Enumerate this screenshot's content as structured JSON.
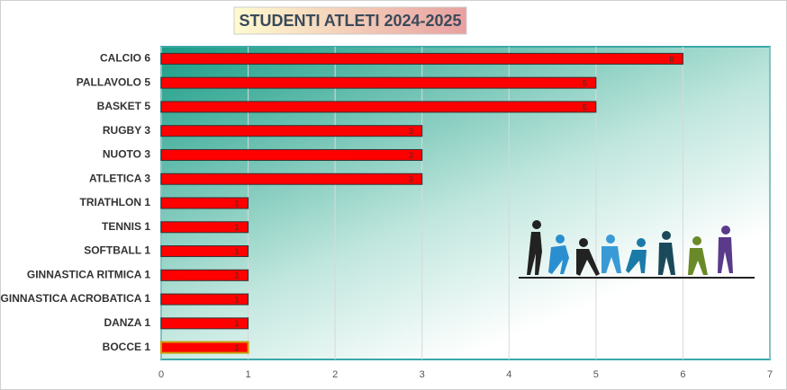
{
  "chart_data": {
    "type": "bar",
    "horizontal": true,
    "title": "STUDENTI ATLETI 2024-2025",
    "categories": [
      "CALCIO 6",
      "PALLAVOLO 5",
      "BASKET 5",
      "RUGBY 3",
      "NUOTO 3",
      "ATLETICA 3",
      "TRIATHLON 1",
      "TENNIS 1",
      "SOFTBALL 1",
      "GINNASTICA RITMICA 1",
      "GINNASTICA ACROBATICA 1",
      "DANZA 1",
      "BOCCE 1"
    ],
    "values": [
      6,
      5,
      5,
      3,
      3,
      3,
      1,
      1,
      1,
      1,
      1,
      1,
      1
    ],
    "color": "#ff0000",
    "xlim": [
      0,
      7
    ],
    "xticks": [
      0,
      1,
      2,
      3,
      4,
      5,
      6,
      7
    ],
    "grid": true
  }
}
